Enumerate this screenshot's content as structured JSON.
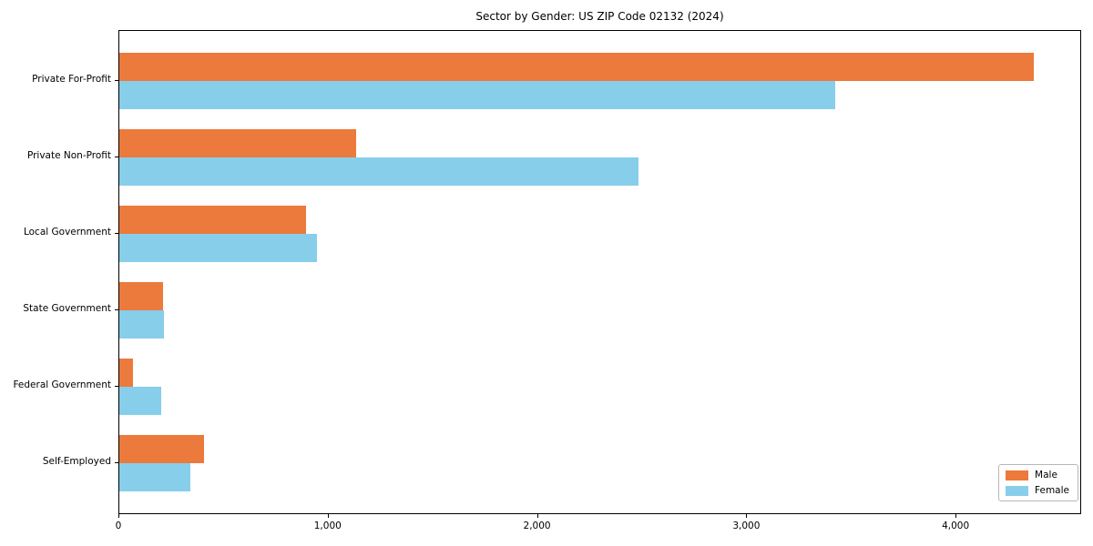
{
  "title": "Sector by Gender: US ZIP Code 02132 (2024)",
  "chart_data": {
    "type": "bar",
    "orientation": "horizontal",
    "title": "Sector by Gender: US ZIP Code 02132 (2024)",
    "xlabel": "",
    "ylabel": "",
    "categories": [
      "Private For-Profit",
      "Private Non-Profit",
      "Local Government",
      "State Government",
      "Federal Government",
      "Self-Employed"
    ],
    "series": [
      {
        "name": "Male",
        "color": "#eb7a3c",
        "values": [
          4370,
          1130,
          890,
          210,
          65,
          405
        ]
      },
      {
        "name": "Female",
        "color": "#87ceeb",
        "values": [
          3420,
          2480,
          945,
          215,
          200,
          340
        ]
      }
    ],
    "xlim": [
      0,
      4600
    ],
    "x_ticks": [
      0,
      1000,
      2000,
      3000,
      4000
    ],
    "x_tick_labels": [
      "0",
      "1,000",
      "2,000",
      "3,000",
      "4,000"
    ],
    "grid": false,
    "legend_position": "lower right"
  },
  "legend": {
    "items": [
      {
        "label": "Male",
        "color": "#eb7a3c"
      },
      {
        "label": "Female",
        "color": "#87ceeb"
      }
    ]
  }
}
